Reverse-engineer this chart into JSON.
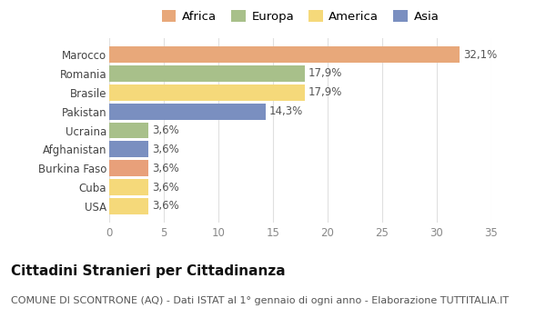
{
  "categories": [
    "USA",
    "Cuba",
    "Burkina Faso",
    "Afghanistan",
    "Ucraina",
    "Pakistan",
    "Brasile",
    "Romania",
    "Marocco"
  ],
  "values": [
    3.6,
    3.6,
    3.6,
    3.6,
    3.6,
    14.3,
    17.9,
    17.9,
    32.1
  ],
  "labels": [
    "3,6%",
    "3,6%",
    "3,6%",
    "3,6%",
    "3,6%",
    "14,3%",
    "17,9%",
    "17,9%",
    "32,1%"
  ],
  "colors": [
    "#f5d97a",
    "#f5d97a",
    "#e8a07a",
    "#7a8fc0",
    "#a8c08a",
    "#7a8fc0",
    "#f5d97a",
    "#a8c08a",
    "#e8a87a"
  ],
  "legend_labels": [
    "Africa",
    "Europa",
    "America",
    "Asia"
  ],
  "legend_colors": [
    "#e8a87a",
    "#a8c08a",
    "#f5d97a",
    "#7a8fc0"
  ],
  "xlim": [
    0,
    35
  ],
  "xticks": [
    0,
    5,
    10,
    15,
    20,
    25,
    30,
    35
  ],
  "title": "Cittadini Stranieri per Cittadinanza",
  "subtitle": "COMUNE DI SCONTRONE (AQ) - Dati ISTAT al 1° gennaio di ogni anno - Elaborazione TUTTITALIA.IT",
  "background_color": "#ffffff",
  "bar_height": 0.85,
  "label_fontsize": 8.5,
  "title_fontsize": 11,
  "subtitle_fontsize": 8,
  "tick_fontsize": 8.5,
  "legend_fontsize": 9.5
}
